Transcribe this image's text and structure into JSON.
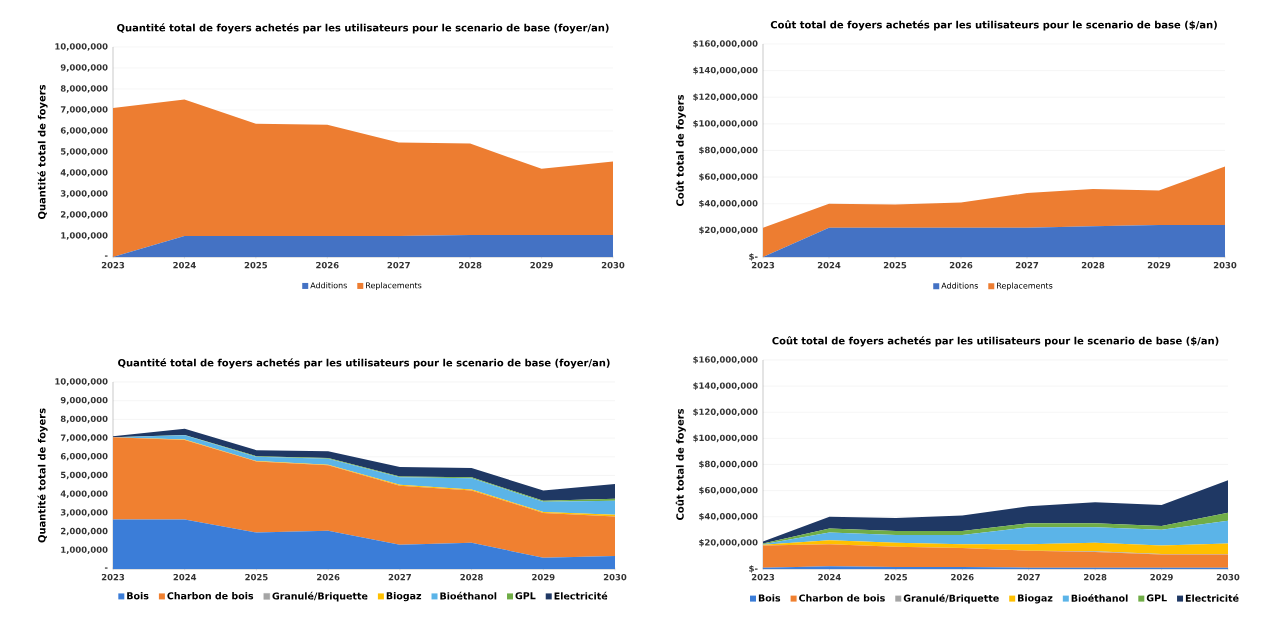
{
  "chart_data": [
    {
      "type": "area",
      "stacked": true,
      "title": "Quantité total de foyers achetés par les utilisateurs pour le scenario de base (foyer/an)",
      "ylabel": "Quantité total de foyers",
      "categories": [
        "2023",
        "2024",
        "2025",
        "2026",
        "2027",
        "2028",
        "2029",
        "2030"
      ],
      "series": [
        {
          "name": "Additions",
          "color": "#4472c4",
          "values": [
            0,
            1000000,
            1000000,
            1000000,
            1000000,
            1050000,
            1050000,
            1050000
          ]
        },
        {
          "name": "Replacements",
          "color": "#ed7d31",
          "values": [
            7100000,
            6500000,
            5350000,
            5300000,
            4450000,
            4350000,
            3150000,
            3500000
          ]
        }
      ],
      "ylim": [
        0,
        10000000
      ],
      "yticks": [
        {
          "value": 0,
          "label": "-"
        },
        {
          "value": 1000000,
          "label": "1,000,000"
        },
        {
          "value": 2000000,
          "label": "2,000,000"
        },
        {
          "value": 3000000,
          "label": "3,000,000"
        },
        {
          "value": 4000000,
          "label": "4,000,000"
        },
        {
          "value": 5000000,
          "label": "5,000,000"
        },
        {
          "value": 6000000,
          "label": "6,000,000"
        },
        {
          "value": 7000000,
          "label": "7,000,000"
        },
        {
          "value": 8000000,
          "label": "8,000,000"
        },
        {
          "value": 9000000,
          "label": "9,000,000"
        },
        {
          "value": 10000000,
          "label": "10,000,000"
        }
      ],
      "grid": "y",
      "legend": "bottom"
    },
    {
      "type": "area",
      "stacked": true,
      "title": "Coût total de foyers achetés par les utilisateurs pour le scenario de base ($/an)",
      "ylabel": "Coût total de foyers",
      "categories": [
        "2023",
        "2024",
        "2025",
        "2026",
        "2027",
        "2028",
        "2029",
        "2030"
      ],
      "series": [
        {
          "name": "Additions",
          "color": "#4472c4",
          "values": [
            0,
            22000000,
            22000000,
            22000000,
            22000000,
            23000000,
            24000000,
            24000000
          ]
        },
        {
          "name": "Replacements",
          "color": "#ed7d31",
          "values": [
            22000000,
            18000000,
            17500000,
            19000000,
            26000000,
            28000000,
            26000000,
            44000000
          ]
        }
      ],
      "ylim": [
        0,
        160000000
      ],
      "yticks": [
        {
          "value": 0,
          "label": "$-"
        },
        {
          "value": 20000000,
          "label": "$20,000,000"
        },
        {
          "value": 40000000,
          "label": "$40,000,000"
        },
        {
          "value": 60000000,
          "label": "$60,000,000"
        },
        {
          "value": 80000000,
          "label": "$80,000,000"
        },
        {
          "value": 100000000,
          "label": "$100,000,000"
        },
        {
          "value": 120000000,
          "label": "$120,000,000"
        },
        {
          "value": 140000000,
          "label": "$140,000,000"
        },
        {
          "value": 160000000,
          "label": "$160,000,000"
        }
      ],
      "grid": "y",
      "legend": "bottom"
    },
    {
      "type": "area",
      "stacked": true,
      "title": "Quantité total de foyers achetés par les utilisateurs pour le scenario de base (foyer/an)",
      "ylabel": "Quantité total de foyers",
      "categories": [
        "2023",
        "2024",
        "2025",
        "2026",
        "2027",
        "2028",
        "2029",
        "2030"
      ],
      "series": [
        {
          "name": "Bois",
          "color": "#3b7dd8",
          "values": [
            2650000,
            2650000,
            1950000,
            2050000,
            1300000,
            1400000,
            600000,
            700000
          ]
        },
        {
          "name": "Charbon de bois",
          "color": "#f08030",
          "values": [
            4400000,
            4250000,
            3800000,
            3500000,
            3150000,
            2800000,
            2400000,
            2100000
          ]
        },
        {
          "name": "Granulé/Briquette",
          "color": "#a5a5a5",
          "values": [
            null,
            null,
            null,
            null,
            null,
            null,
            null,
            null
          ]
        },
        {
          "name": "Biogaz",
          "color": "#ffc000",
          "values": [
            0,
            20000,
            20000,
            30000,
            50000,
            50000,
            50000,
            100000
          ]
        },
        {
          "name": "Bioéthanol",
          "color": "#5bb4e8",
          "values": [
            0,
            230000,
            230000,
            320000,
            400000,
            600000,
            550000,
            750000
          ]
        },
        {
          "name": "GPL",
          "color": "#70ad47",
          "values": [
            0,
            20000,
            30000,
            30000,
            50000,
            50000,
            50000,
            100000
          ]
        },
        {
          "name": "Electricité",
          "color": "#1f3864",
          "values": [
            50000,
            330000,
            320000,
            370000,
            500000,
            500000,
            550000,
            800000
          ]
        }
      ],
      "ylim": [
        0,
        10000000
      ],
      "yticks": [
        {
          "value": 0,
          "label": "-"
        },
        {
          "value": 1000000,
          "label": "1,000,000"
        },
        {
          "value": 2000000,
          "label": "2,000,000"
        },
        {
          "value": 3000000,
          "label": "3,000,000"
        },
        {
          "value": 4000000,
          "label": "4,000,000"
        },
        {
          "value": 5000000,
          "label": "5,000,000"
        },
        {
          "value": 6000000,
          "label": "6,000,000"
        },
        {
          "value": 7000000,
          "label": "7,000,000"
        },
        {
          "value": 8000000,
          "label": "8,000,000"
        },
        {
          "value": 9000000,
          "label": "9,000,000"
        },
        {
          "value": 10000000,
          "label": "10,000,000"
        }
      ],
      "grid": "y",
      "legend": "bottom"
    },
    {
      "type": "area",
      "stacked": true,
      "title": "Coût total de foyers achetés par les utilisateurs pour le scenario de base ($/an)",
      "ylabel": "Coût total de foyers",
      "categories": [
        "2023",
        "2024",
        "2025",
        "2026",
        "2027",
        "2028",
        "2029",
        "2030"
      ],
      "series": [
        {
          "name": "Bois",
          "color": "#3b7dd8",
          "values": [
            1000000,
            2000000,
            1500000,
            1500000,
            1000000,
            1000000,
            1000000,
            1000000
          ]
        },
        {
          "name": "Charbon de bois",
          "color": "#f08030",
          "values": [
            17000000,
            17000000,
            15500000,
            14500000,
            13000000,
            12000000,
            10000000,
            10000000
          ]
        },
        {
          "name": "Granulé/Briquette",
          "color": "#a5a5a5",
          "values": [
            0,
            0,
            0,
            0,
            0,
            500000,
            500000,
            500000
          ]
        },
        {
          "name": "Biogaz",
          "color": "#ffc000",
          "values": [
            500000,
            3000000,
            3000000,
            3000000,
            5000000,
            6500000,
            6500000,
            8000000
          ]
        },
        {
          "name": "Bioéthanol",
          "color": "#5bb4e8",
          "values": [
            500000,
            6000000,
            6000000,
            7000000,
            13000000,
            12000000,
            12000000,
            17500000
          ]
        },
        {
          "name": "GPL",
          "color": "#70ad47",
          "values": [
            500000,
            3000000,
            3000000,
            3000000,
            3000000,
            3000000,
            3000000,
            6000000
          ]
        },
        {
          "name": "Electricité",
          "color": "#1f3864",
          "values": [
            1500000,
            9000000,
            10000000,
            12000000,
            13000000,
            16000000,
            16000000,
            25000000
          ]
        }
      ],
      "ylim": [
        0,
        160000000
      ],
      "yticks": [
        {
          "value": 0,
          "label": "$-"
        },
        {
          "value": 20000000,
          "label": "$20,000,000"
        },
        {
          "value": 40000000,
          "label": "$40,000,000"
        },
        {
          "value": 60000000,
          "label": "$60,000,000"
        },
        {
          "value": 80000000,
          "label": "$80,000,000"
        },
        {
          "value": 100000000,
          "label": "$100,000,000"
        },
        {
          "value": 120000000,
          "label": "$120,000,000"
        },
        {
          "value": 140000000,
          "label": "$140,000,000"
        },
        {
          "value": 160000000,
          "label": "$160,000,000"
        }
      ],
      "grid": "y",
      "legend": "bottom"
    }
  ]
}
